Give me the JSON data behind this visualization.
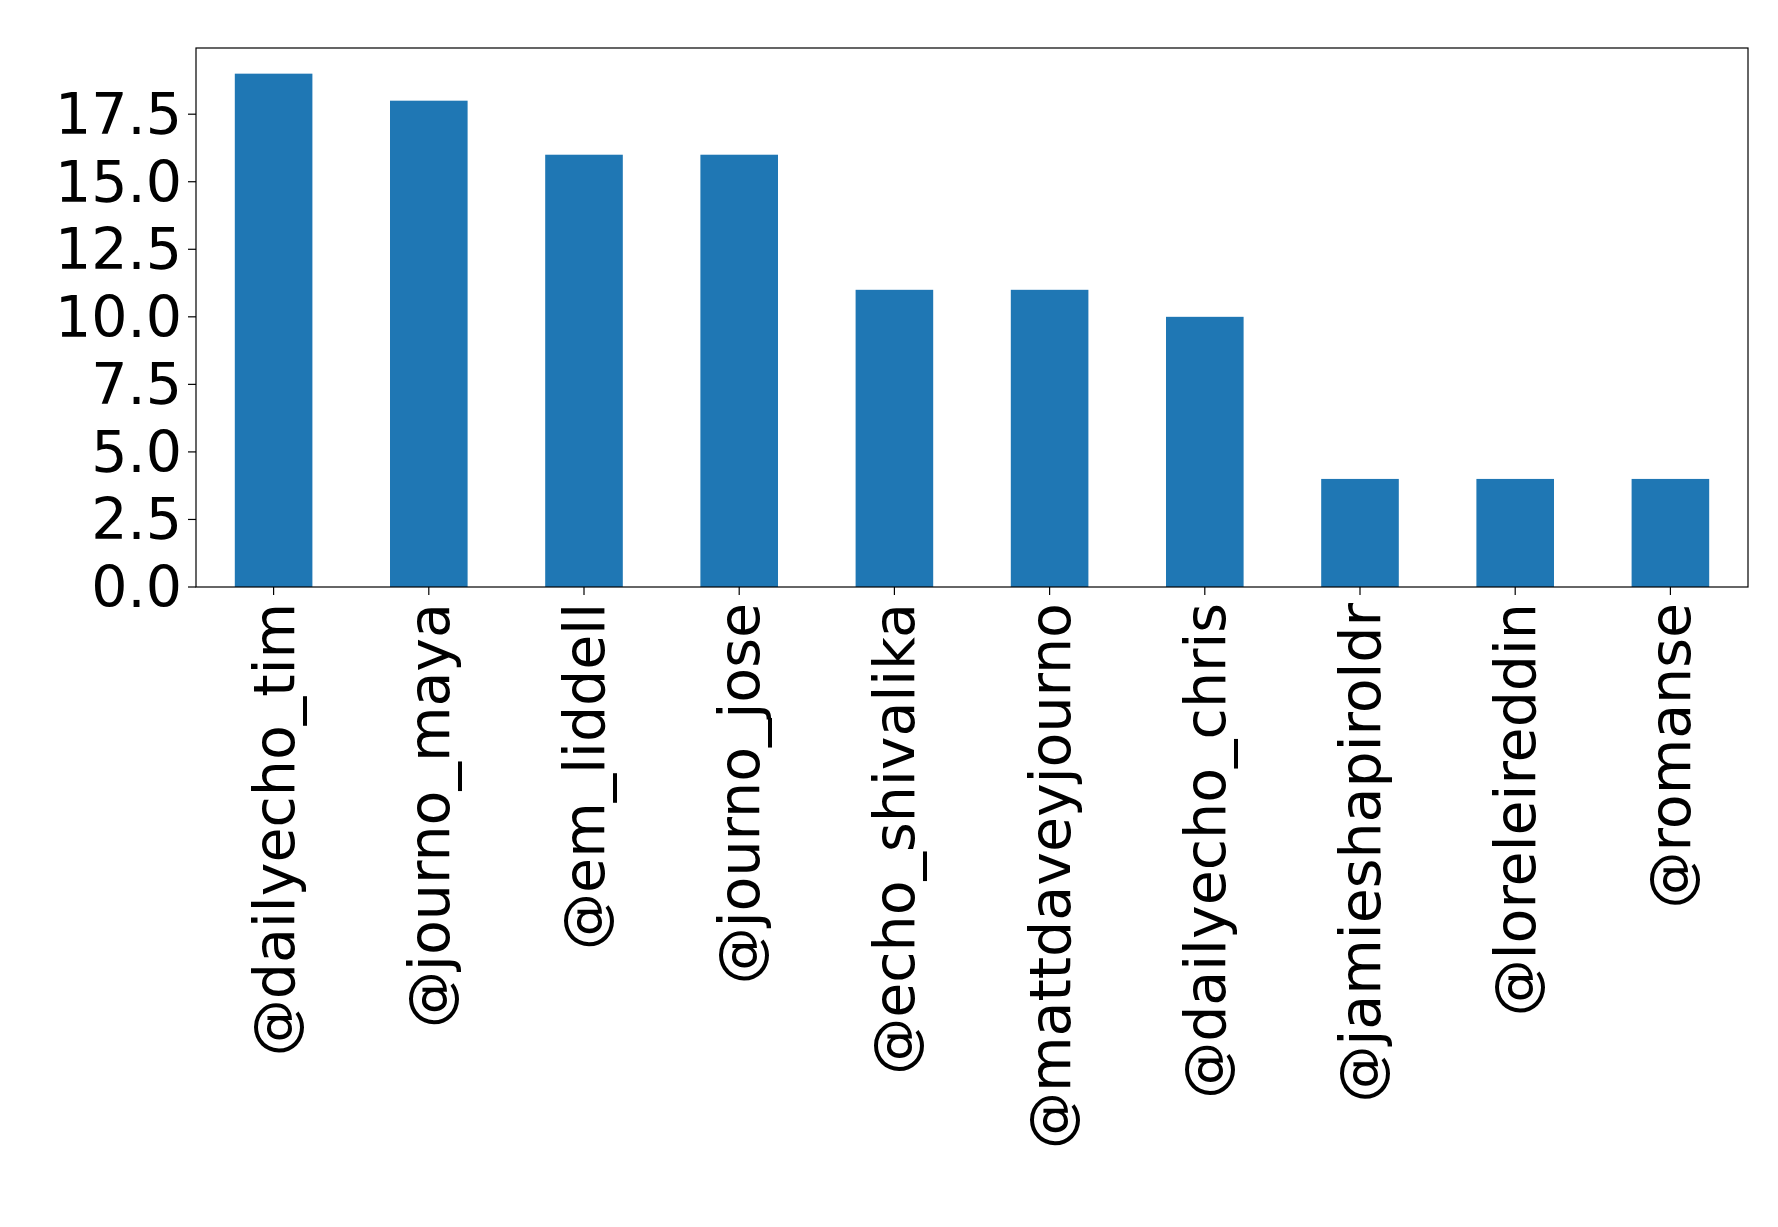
{
  "chart_data": {
    "type": "bar",
    "categories": [
      "@dailyecho_tim",
      "@journo_maya",
      "@em_liddell",
      "@journo_jose",
      "@echo_shivalika",
      "@mattdaveyjourno",
      "@dailyecho_chris",
      "@jamieshapiroldr",
      "@loreleireddin",
      "@romanse"
    ],
    "values": [
      19,
      18,
      16,
      16,
      11,
      11,
      10,
      4,
      4,
      4
    ],
    "color": "#1f77b4",
    "ylim": [
      0,
      19.95
    ],
    "yticks": [
      {
        "value": 0,
        "label": "0.0"
      },
      {
        "value": 2.5,
        "label": "2.5"
      },
      {
        "value": 5,
        "label": "5.0"
      },
      {
        "value": 7.5,
        "label": "7.5"
      },
      {
        "value": 10,
        "label": "10.0"
      },
      {
        "value": 12.5,
        "label": "12.5"
      },
      {
        "value": 15,
        "label": "15.0"
      },
      {
        "value": 17.5,
        "label": "17.5"
      }
    ],
    "grid": false
  }
}
